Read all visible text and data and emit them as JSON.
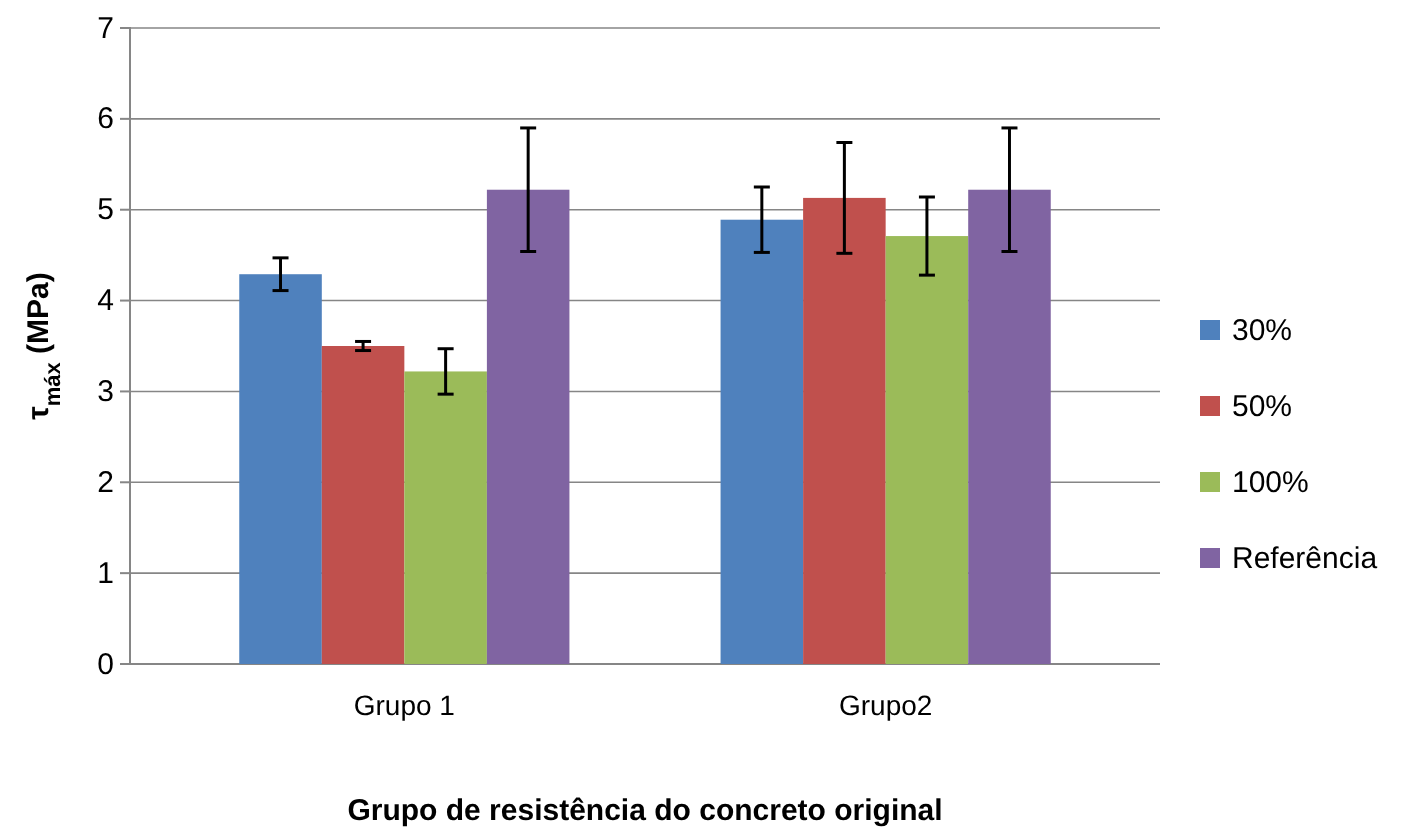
{
  "chart_data": {
    "type": "bar",
    "xlabel": "Grupo de resistência do concreto original",
    "ylabel": "τ$_{máx}$ (MPa)",
    "categories": [
      "Grupo 1",
      "Grupo2"
    ],
    "series": [
      {
        "name": "30%",
        "color": "#4f81bd",
        "values": [
          4.29,
          4.89
        ],
        "errors": [
          0.18,
          0.36
        ]
      },
      {
        "name": "50%",
        "color": "#c0504d",
        "values": [
          3.5,
          5.13
        ],
        "errors": [
          0.05,
          0.61
        ]
      },
      {
        "name": "100%",
        "color": "#9bbb59",
        "values": [
          3.22,
          4.71
        ],
        "errors": [
          0.25,
          0.43
        ]
      },
      {
        "name": "Referência",
        "color": "#8064a2",
        "values": [
          5.22,
          5.22
        ],
        "errors": [
          0.68,
          0.68
        ]
      }
    ],
    "ylim": [
      0,
      7
    ],
    "yticks": [
      0,
      1,
      2,
      3,
      4,
      5,
      6,
      7
    ],
    "grid": "y",
    "legend": "right"
  }
}
